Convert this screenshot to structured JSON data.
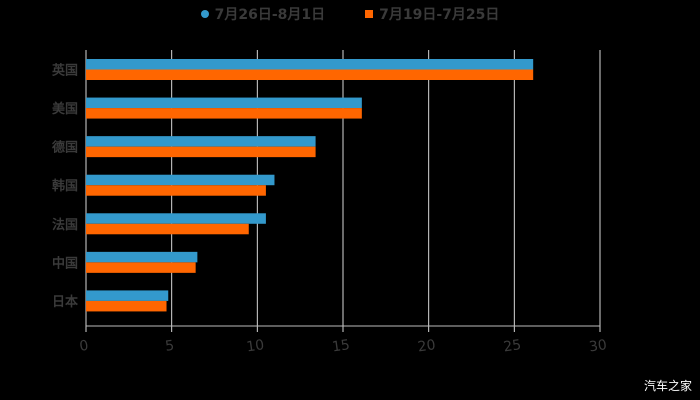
{
  "chart_data": {
    "type": "bar",
    "orientation": "horizontal",
    "title": "",
    "xlabel": "",
    "ylabel": "",
    "categories": [
      "英国",
      "美国",
      "德国",
      "韩国",
      "法国",
      "中国",
      "日本"
    ],
    "series": [
      {
        "name": "7月26日-8月1日",
        "color": "#3399cc",
        "marker": "circle",
        "values": [
          26.1,
          16.1,
          13.4,
          11.0,
          10.5,
          6.5,
          4.8
        ]
      },
      {
        "name": "7月19日-7月25日",
        "color": "#ff6600",
        "marker": "square",
        "values": [
          26.1,
          16.1,
          13.4,
          10.5,
          9.5,
          6.4,
          4.7
        ]
      }
    ],
    "xlim": [
      0,
      30
    ],
    "xticks": [
      0,
      5,
      10,
      15,
      20,
      25,
      30
    ],
    "grid": true,
    "legend_position": "top"
  },
  "legend": {
    "items": [
      {
        "label": "7月26日-8月1日",
        "color": "#3399cc"
      },
      {
        "label": "7月19日-7月25日",
        "color": "#ff6600"
      }
    ]
  },
  "watermark": "汽车之家"
}
